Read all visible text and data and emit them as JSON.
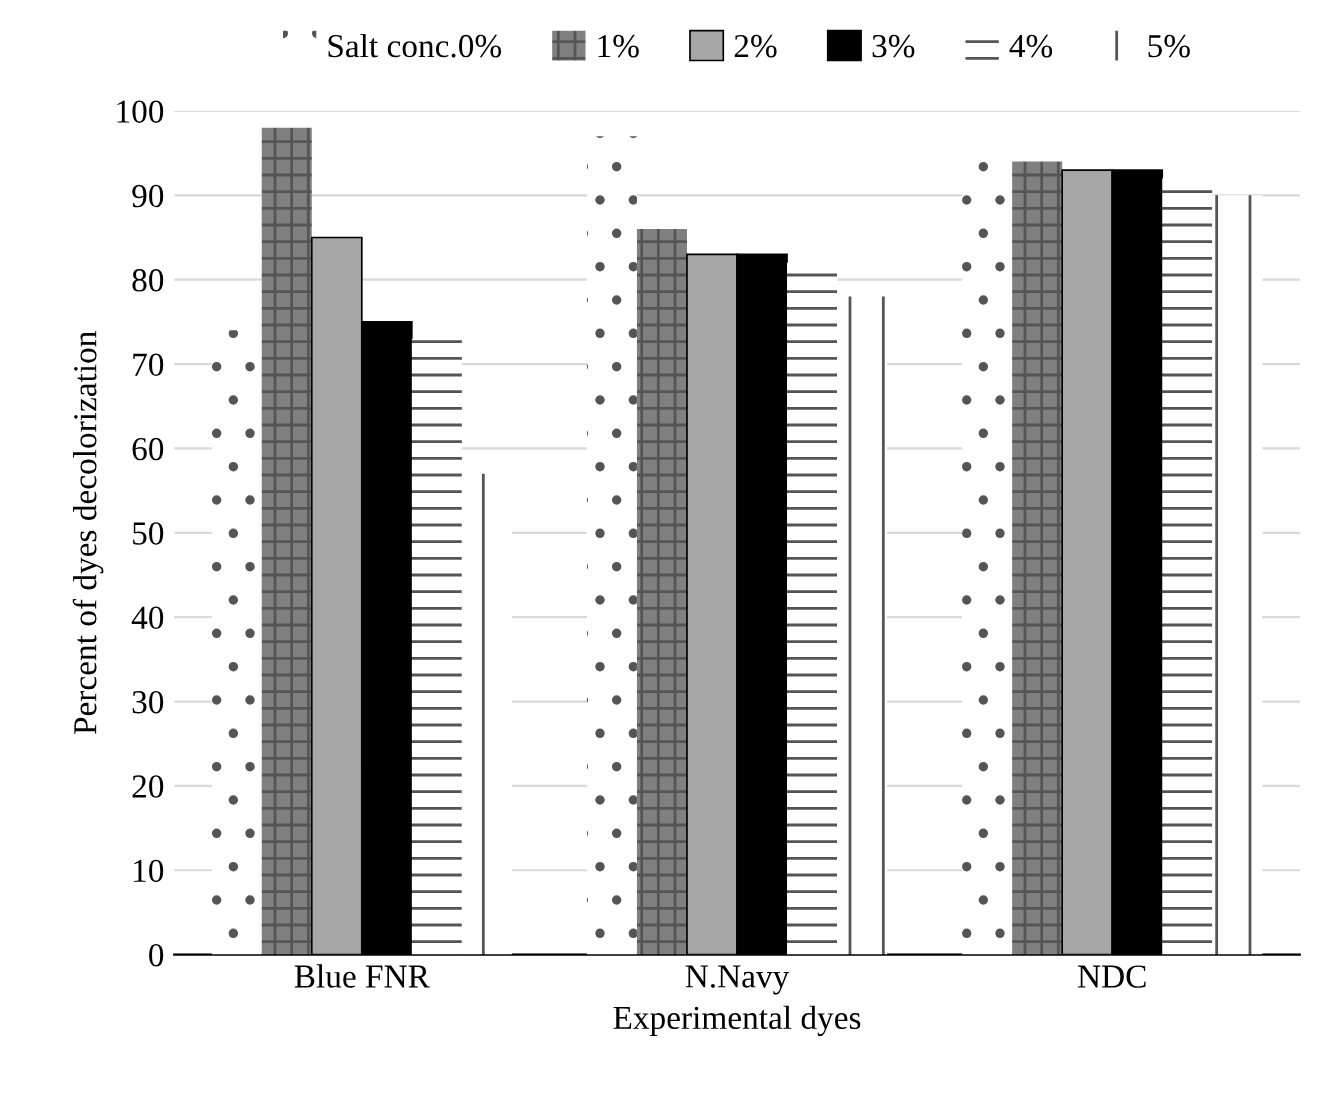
{
  "chart_data": {
    "type": "bar",
    "xlabel": "Experimental dyes",
    "ylabel": "Percent of dyes decolorization",
    "categories": [
      "Blue FNR",
      "N.Navy",
      "NDC"
    ],
    "series": [
      {
        "name": "Salt conc.0%",
        "color": "#ffffff",
        "values": [
          74,
          97,
          94
        ]
      },
      {
        "name": "1%",
        "color": "#808080",
        "values": [
          98,
          86,
          94
        ]
      },
      {
        "name": "2%",
        "color": "#a6a6a6",
        "values": [
          85,
          83,
          93
        ]
      },
      {
        "name": "3%",
        "color": "#000000",
        "values": [
          75,
          83,
          93
        ]
      },
      {
        "name": "4%",
        "color": "#ffffff",
        "values": [
          73,
          82,
          92
        ]
      },
      {
        "name": "5%",
        "color": "#ffffff",
        "values": [
          57,
          78,
          90
        ]
      }
    ],
    "ylim": [
      0,
      100
    ],
    "yticks": [
      0,
      10,
      20,
      30,
      40,
      50,
      60,
      70,
      80,
      90,
      100
    ],
    "grid": "y",
    "legend": "top"
  }
}
